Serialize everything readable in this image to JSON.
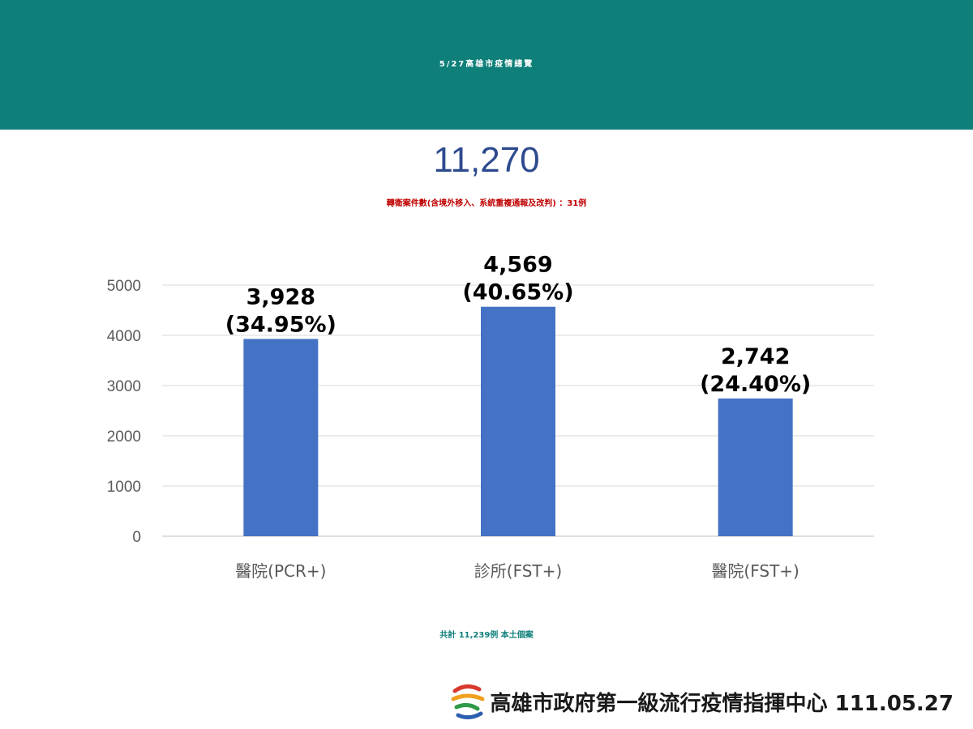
{
  "header": {
    "title": "5/27高雄市疫情總覽"
  },
  "summary": {
    "total_reported": "11,270",
    "transfer_note": "轉衛案件數(含境外移入、系統重複通報及改判) ：31例",
    "grand_total": "共計 11,239例 本土個案"
  },
  "footer": {
    "org_text": "高雄市政府第一級流行疫情指揮中心 111.05.27",
    "logo_icon": "kaohsiung-city-logo-icon"
  },
  "colors": {
    "banner": "#0f7f7a",
    "bar": "#4472c4",
    "transfer_note": "#c00000",
    "total_reported": "#2e4a8f",
    "grand_total": "#0f7f7a"
  },
  "chart_data": {
    "type": "bar",
    "categories": [
      "醫院(PCR+)",
      "診所(FST+)",
      "醫院(FST+)"
    ],
    "values": [
      3928,
      4569,
      2742
    ],
    "data_labels": [
      "3,928",
      "4,569",
      "2,742"
    ],
    "percent_labels": [
      "(34.95%)",
      "(40.65%)",
      "(24.40%)"
    ],
    "ylim": [
      0,
      5000
    ],
    "yticks": [
      0,
      1000,
      2000,
      3000,
      4000,
      5000
    ],
    "grid": true,
    "legend": "none",
    "title": "",
    "xlabel": "",
    "ylabel": ""
  }
}
